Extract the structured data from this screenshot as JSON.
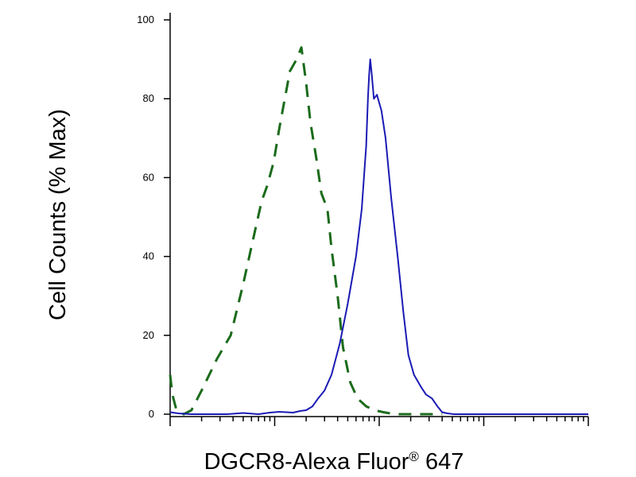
{
  "chart_data": {
    "type": "line",
    "title": "",
    "xlabel": "DGCR8-Alexa Fluor",
    "xlabel_sup": "®",
    "xlabel_suffix": " 647",
    "ylabel": "Cell Counts (% Max)",
    "x_scale": "log",
    "xlim": [
      1,
      10000
    ],
    "ylim": [
      0,
      100
    ],
    "yticks": [
      0,
      20,
      40,
      60,
      80,
      100
    ],
    "ytick_labels": [
      "0",
      "20",
      "40",
      "60",
      "80",
      "100"
    ],
    "grid": false,
    "series": [
      {
        "line_style": "dashed",
        "color": "#1b6b1b",
        "x": [
          1,
          1.05,
          1.15,
          1.35,
          1.6,
          2.0,
          2.8,
          3.8,
          5.0,
          6.3,
          7.5,
          8.5,
          9.8,
          11,
          12.3,
          14,
          16.2,
          18,
          20,
          22,
          25,
          28,
          32,
          35,
          40,
          45,
          53,
          62,
          75,
          90,
          110,
          140,
          180,
          250,
          400
        ],
        "y": [
          10,
          5,
          1,
          0,
          1,
          6,
          14,
          20,
          33,
          45,
          54,
          58,
          64,
          72,
          79,
          87,
          90,
          93,
          84,
          74,
          65,
          56,
          52,
          42,
          30,
          17,
          8,
          4,
          2,
          1,
          0.5,
          0,
          0,
          0,
          0
        ]
      },
      {
        "line_style": "solid",
        "color": "#1a1ab4",
        "x": [
          1,
          1.2,
          1.6,
          2.2,
          3.5,
          5.0,
          7.0,
          9.0,
          11,
          13,
          15,
          17.5,
          20,
          23,
          26,
          30,
          35,
          42,
          50,
          60,
          68,
          75,
          78,
          80,
          82,
          85,
          89,
          95,
          105,
          115,
          130,
          150,
          170,
          190,
          215,
          250,
          280,
          320,
          360,
          400,
          450,
          520,
          620,
          800,
          1200,
          2000,
          4000,
          7000,
          10000
        ],
        "y": [
          0.5,
          0.2,
          0,
          0,
          0,
          0.3,
          0,
          0.4,
          0.6,
          0.5,
          0.4,
          0.8,
          1,
          2,
          4,
          6,
          10,
          18,
          28,
          40,
          52,
          68,
          80,
          86,
          90,
          86,
          80,
          81,
          77,
          70,
          55,
          40,
          26,
          15,
          10,
          7,
          5,
          4,
          2,
          0.5,
          0.2,
          0,
          0,
          0,
          0,
          0,
          0,
          0,
          0
        ]
      }
    ]
  }
}
